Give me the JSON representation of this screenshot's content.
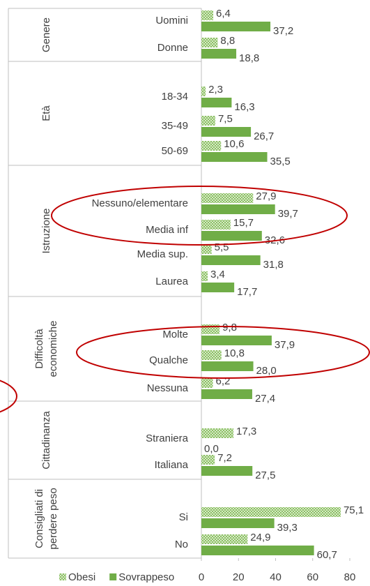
{
  "chart_data": {
    "type": "bar",
    "orientation": "horizontal",
    "groups": [
      {
        "label": [
          "Genere"
        ],
        "categories": [
          "Uomini",
          "Donne"
        ]
      },
      {
        "label": [
          "Età"
        ],
        "categories": [
          "18-34",
          "35-49",
          "50-69"
        ]
      },
      {
        "label": [
          "Istruzione"
        ],
        "categories": [
          "Nessuno/elementare",
          "Media inf",
          "Media sup.",
          "Laurea"
        ]
      },
      {
        "label": [
          "Difficoltà",
          "economiche"
        ],
        "categories": [
          "Molte",
          "Qualche",
          "Nessuna"
        ]
      },
      {
        "label": [
          "Cittadinanza"
        ],
        "categories": [
          "Straniera",
          "Italiana"
        ]
      },
      {
        "label": [
          "Consigliati di",
          "perdere peso"
        ],
        "categories": [
          "Si",
          "No"
        ]
      }
    ],
    "series": [
      {
        "name": "Obesi",
        "color": "#a9d18e",
        "pattern": "checker",
        "values": [
          6.4,
          8.8,
          2.3,
          7.5,
          10.6,
          27.9,
          15.7,
          5.5,
          3.4,
          9.8,
          10.8,
          6.2,
          17.3,
          7.2,
          75.1,
          24.9
        ],
        "value_labels": [
          "6,4",
          "8,8",
          "2,3",
          "7,5",
          "10,6",
          "27,9",
          "15,7",
          "5,5",
          "3,4",
          "9,8",
          "10,8",
          "6,2",
          "17,3",
          "7,2",
          "75,1",
          "24,9"
        ]
      },
      {
        "name": "Sovrappeso",
        "color": "#70ad47",
        "values": [
          37.2,
          18.8,
          16.3,
          26.7,
          35.5,
          39.7,
          32.6,
          31.8,
          17.7,
          37.9,
          28.0,
          27.4,
          0.0,
          27.5,
          39.3,
          60.7
        ],
        "value_labels": [
          "37,2",
          "18,8",
          "16,3",
          "26,7",
          "35,5",
          "39,7",
          "32,6",
          "31,8",
          "17,7",
          "37,9",
          "28,0",
          "27,4",
          "0,0",
          "27,5",
          "39,3",
          "60,7"
        ]
      }
    ],
    "xlim": [
      0,
      80
    ],
    "xticks": [
      0,
      20,
      40,
      60,
      80
    ],
    "legend": "bottom"
  }
}
